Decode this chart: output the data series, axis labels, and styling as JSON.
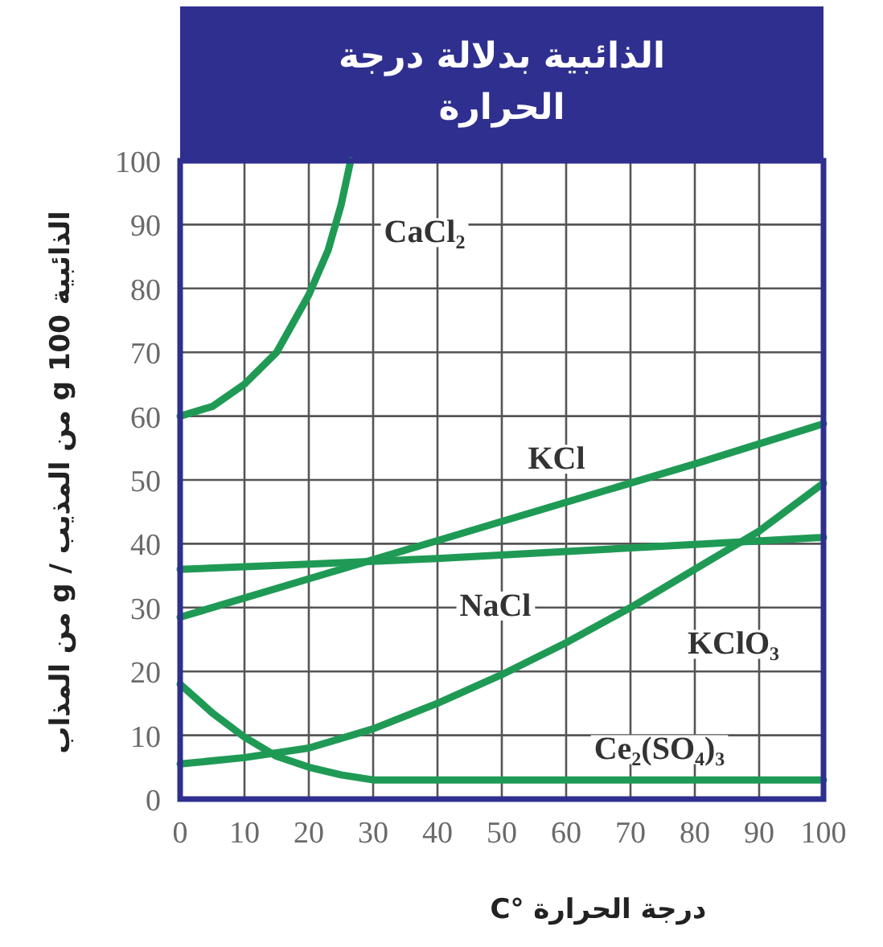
{
  "chart_data": {
    "type": "line",
    "title": "الذائبية بدلالة درجة الحرارة",
    "xlabel": "درجة الحرارة °C",
    "ylabel": "الذائبية 100 g من المذيب / g من المذاب",
    "xlim": [
      0,
      100
    ],
    "ylim": [
      0,
      100
    ],
    "xticks": [
      0,
      10,
      20,
      30,
      40,
      50,
      60,
      70,
      80,
      90,
      100
    ],
    "yticks": [
      0,
      10,
      20,
      30,
      40,
      50,
      60,
      70,
      80,
      90,
      100
    ],
    "grid": true,
    "line_style": "solid",
    "series": [
      {
        "name": "CaCl₂",
        "color": "#1f9a55",
        "x": [
          0,
          5,
          10,
          15,
          20,
          23,
          25,
          26.5
        ],
        "values": [
          60,
          61.5,
          65,
          70,
          79,
          86,
          93,
          100
        ]
      },
      {
        "name": "KCl",
        "color": "#1f9a55",
        "x": [
          0,
          20,
          40,
          60,
          80,
          100
        ],
        "values": [
          28.5,
          34.5,
          40.5,
          46.5,
          52.5,
          58.8
        ]
      },
      {
        "name": "NaCl",
        "color": "#1f9a55",
        "x": [
          0,
          20,
          40,
          60,
          80,
          100
        ],
        "values": [
          36,
          36.8,
          37.7,
          38.8,
          39.9,
          41
        ]
      },
      {
        "name": "KClO₃",
        "color": "#1f9a55",
        "x": [
          0,
          10,
          20,
          30,
          40,
          50,
          60,
          70,
          80,
          90,
          100
        ],
        "values": [
          5.5,
          6.5,
          8,
          11,
          15,
          19.5,
          24.5,
          30,
          36,
          42,
          49.5
        ]
      },
      {
        "name": "Ce₂(SO₄)₃",
        "color": "#1f9a55",
        "x": [
          0,
          5,
          10,
          15,
          20,
          25,
          30,
          40,
          60,
          80,
          100
        ],
        "values": [
          18,
          13.5,
          9.7,
          6.7,
          5,
          3.8,
          3,
          3,
          3,
          3,
          3
        ]
      }
    ]
  }
}
